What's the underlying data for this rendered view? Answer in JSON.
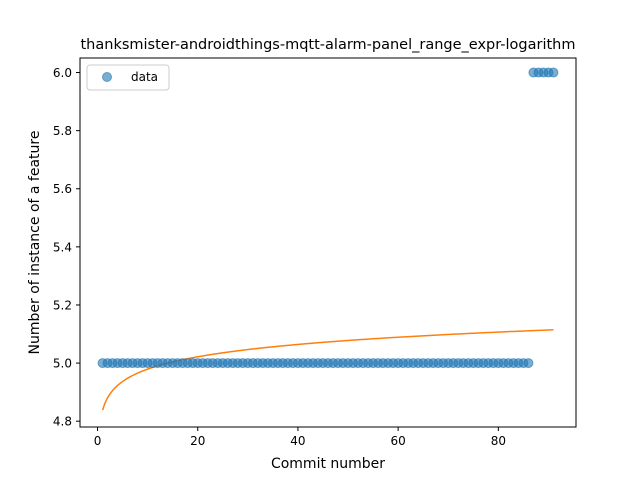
{
  "chart_data": {
    "type": "scatter",
    "title": "thanksmister-androidthings-mqtt-alarm-panel_range_expr-logarithm",
    "xlabel": "Commit number",
    "ylabel": "Number of instance of a feature",
    "xlim": [
      -3.5,
      95.5
    ],
    "ylim": [
      4.78,
      6.05
    ],
    "xticks": [
      0,
      20,
      40,
      60,
      80
    ],
    "yticks": [
      4.8,
      5.0,
      5.2,
      5.4,
      5.6,
      5.8,
      6.0
    ],
    "ytick_labels": [
      "4.8",
      "5.0",
      "5.2",
      "5.4",
      "5.6",
      "5.8",
      "6.0"
    ],
    "grid": false,
    "legend": {
      "placement": "top-left",
      "entries": [
        "data"
      ]
    },
    "series": [
      {
        "name": "data",
        "kind": "scatter",
        "color": "#1f77b4",
        "segments": [
          {
            "x_from": 1,
            "x_to": 86,
            "y": 5.0
          },
          {
            "x_from": 87,
            "x_to": 91,
            "y": 6.0
          }
        ]
      },
      {
        "kind": "line",
        "color": "#ff7f0e",
        "fit": {
          "form": "a + b*ln(x)",
          "a": 4.838,
          "b": 0.0613,
          "x_from": 1,
          "x_to": 91
        }
      }
    ]
  }
}
